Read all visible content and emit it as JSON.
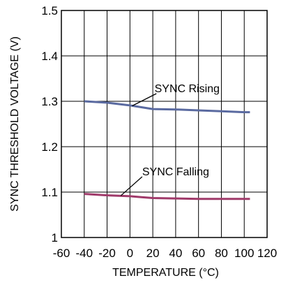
{
  "chart_data": {
    "type": "line",
    "xlabel": "TEMPERATURE (°C)",
    "ylabel": "SYNC THRESHOLD VOLTAGE (V)",
    "xlim": [
      -60,
      120
    ],
    "ylim": [
      1.0,
      1.5
    ],
    "x_ticks": [
      "-60",
      "-40",
      "-20",
      "0",
      "20",
      "40",
      "60",
      "80",
      "100",
      "120"
    ],
    "y_ticks": [
      "1",
      "1.1",
      "1.2",
      "1.3",
      "1.4",
      "1.5"
    ],
    "grid": true,
    "series": [
      {
        "name": "SYNC Rising",
        "color": "#5a6aa0",
        "x": [
          -40,
          -20,
          0,
          10,
          20,
          40,
          60,
          80,
          100,
          105
        ],
        "y": [
          1.3,
          1.297,
          1.291,
          1.287,
          1.283,
          1.282,
          1.28,
          1.278,
          1.276,
          1.276
        ]
      },
      {
        "name": "SYNC Falling",
        "color": "#a03a6a",
        "x": [
          -40,
          -20,
          0,
          10,
          20,
          40,
          60,
          80,
          100,
          105
        ],
        "y": [
          1.096,
          1.093,
          1.091,
          1.089,
          1.087,
          1.086,
          1.085,
          1.085,
          1.085,
          1.085
        ]
      }
    ],
    "annotations": [
      {
        "text": "SYNC Rising",
        "series": 0,
        "x": 50,
        "y": 1.32
      },
      {
        "text": "SYNC Falling",
        "series": 1,
        "x": 40,
        "y": 1.137
      }
    ]
  }
}
